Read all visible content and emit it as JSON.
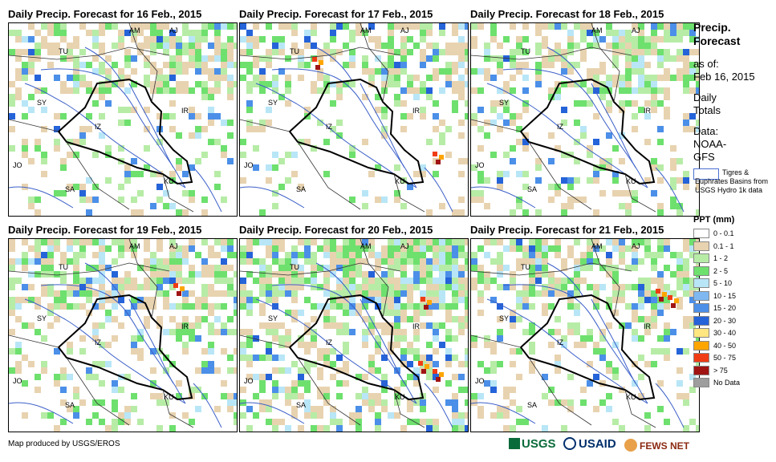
{
  "panels": [
    {
      "title": "Daily Precip. Forecast for 16 Feb., 2015",
      "day": 16
    },
    {
      "title": "Daily Precip. Forecast for 17 Feb., 2015",
      "day": 17
    },
    {
      "title": "Daily Precip. Forecast for 18 Feb., 2015",
      "day": 18
    },
    {
      "title": "Daily Precip. Forecast for 19 Feb., 2015",
      "day": 19
    },
    {
      "title": "Daily Precip. Forecast for 20 Feb., 2015",
      "day": 20
    },
    {
      "title": "Daily Precip. Forecast for 21 Feb., 2015",
      "day": 21
    }
  ],
  "map_labels": [
    "AM",
    "AJ",
    "TU",
    "SY",
    "IZ",
    "IR",
    "JO",
    "SA",
    "KU"
  ],
  "sidebar": {
    "title_line1": "Precip.",
    "title_line2": "Forecast",
    "asof_label": "as of:",
    "asof_date": "Feb 16, 2015",
    "daily_line1": "Daily",
    "daily_line2": "Totals",
    "data_label": "Data:",
    "data_line1": "NOAA-",
    "data_line2": "GFS",
    "basin_text": "Tigres & Euphrates Basins from USGS Hydro 1k data"
  },
  "legend": {
    "title": "PPT (mm)",
    "items": [
      {
        "label": "0 - 0.1",
        "color": "#ffffff"
      },
      {
        "label": "0.1 - 1",
        "color": "#e8d3b0"
      },
      {
        "label": "1 - 2",
        "color": "#b7eca7"
      },
      {
        "label": "2 - 5",
        "color": "#6ee06e"
      },
      {
        "label": "5 - 10",
        "color": "#b8e6f7"
      },
      {
        "label": "10 - 15",
        "color": "#7fb8f0"
      },
      {
        "label": "15 - 20",
        "color": "#4b8fe8"
      },
      {
        "label": "20 - 30",
        "color": "#2563d9"
      },
      {
        "label": "30 - 40",
        "color": "#ffe680"
      },
      {
        "label": "40 - 50",
        "color": "#ffa500"
      },
      {
        "label": "50 - 75",
        "color": "#f03c14"
      },
      {
        "label": "> 75",
        "color": "#a01414"
      },
      {
        "label": "No Data",
        "color": "#9e9e9e"
      }
    ]
  },
  "footer": {
    "credit": "Map produced by USGS/EROS",
    "logo_usgs": "USGS",
    "logo_usaid": "USAID",
    "logo_fews": "FEWS NET"
  }
}
